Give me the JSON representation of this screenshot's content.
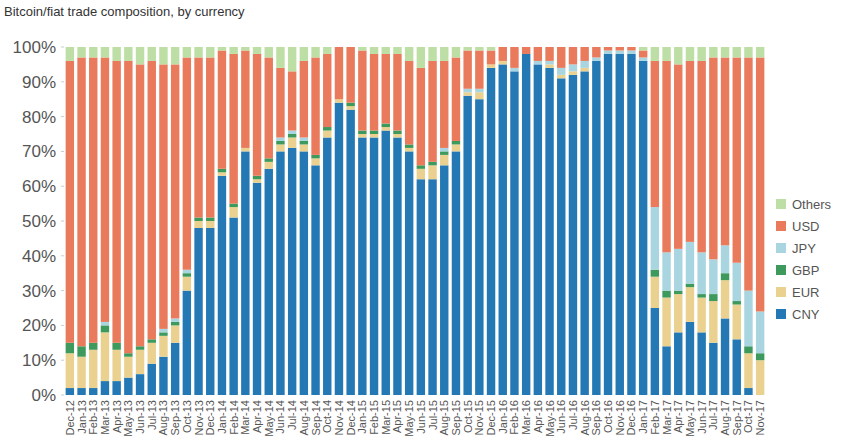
{
  "chart_data": {
    "type": "bar",
    "title": "Bitcoin/fiat trade composition, by currency",
    "stacked": true,
    "grid": false,
    "legend": "right",
    "categories": [
      "Dec-12",
      "Jan-13",
      "Feb-13",
      "Mar-13",
      "Apr-13",
      "May-13",
      "Jun-13",
      "Jul-13",
      "Aug-13",
      "Sep-13",
      "Oct-13",
      "Nov-13",
      "Dec-13",
      "Jan-14",
      "Feb-14",
      "Mar-14",
      "Apr-14",
      "May-14",
      "Jun-14",
      "Jul-14",
      "Aug-14",
      "Sep-14",
      "Oct-14",
      "Nov-14",
      "Dec-14",
      "Jan-15",
      "Feb-15",
      "Mar-15",
      "Apr-15",
      "May-15",
      "Jun-15",
      "Jul-15",
      "Aug-15",
      "Sep-15",
      "Oct-15",
      "Nov-15",
      "Dec-15",
      "Jan-16",
      "Feb-16",
      "Mar-16",
      "Apr-16",
      "May-16",
      "Jun-16",
      "Jul-16",
      "Aug-16",
      "Sep-16",
      "Oct-16",
      "Nov-16",
      "Dec-16",
      "Jan-17",
      "Feb-17",
      "Mar-17",
      "Apr-17",
      "May-17",
      "Jun-17",
      "Jul-17",
      "Aug-17",
      "Sep-17",
      "Oct-17",
      "Nov-17"
    ],
    "ylim": [
      0,
      100
    ],
    "yticks": [
      {
        "value": 0,
        "label": "0%"
      },
      {
        "value": 10,
        "label": "10%"
      },
      {
        "value": 20,
        "label": "20%"
      },
      {
        "value": 30,
        "label": "30%"
      },
      {
        "value": 40,
        "label": "40%"
      },
      {
        "value": 50,
        "label": "50%"
      },
      {
        "value": 60,
        "label": "60%"
      },
      {
        "value": 70,
        "label": "70%"
      },
      {
        "value": 80,
        "label": "80%"
      },
      {
        "value": 90,
        "label": "90%"
      },
      {
        "value": 100,
        "label": "100%"
      }
    ],
    "series": [
      {
        "name": "CNY",
        "color": "#2479b5",
        "values": [
          2,
          2,
          2,
          4,
          4,
          5,
          6,
          9,
          11,
          15,
          30,
          48,
          48,
          63,
          51,
          70,
          61,
          65,
          70,
          71,
          70,
          66,
          74,
          84,
          82,
          74,
          74,
          76,
          74,
          70,
          62,
          62,
          66,
          70,
          86,
          85,
          94,
          95,
          93,
          98,
          95,
          94,
          91,
          92,
          93,
          96,
          98,
          98,
          98,
          96,
          25,
          14,
          18,
          21,
          18,
          15,
          22,
          16,
          2,
          0
        ]
      },
      {
        "name": "EUR",
        "color": "#ead18f",
        "values": [
          10,
          9,
          11,
          14,
          9,
          6,
          7,
          6,
          6,
          5,
          4,
          2,
          2,
          1,
          3,
          1,
          1,
          2,
          2,
          3,
          2,
          2,
          2,
          1,
          1,
          1,
          1,
          1,
          1,
          1,
          3,
          4,
          3,
          2,
          1,
          2,
          1,
          1,
          0,
          0,
          0,
          1,
          1,
          1,
          1,
          0,
          0,
          0,
          0,
          0,
          9,
          14,
          11,
          10,
          10,
          12,
          11,
          10,
          10,
          10
        ]
      },
      {
        "name": "GBP",
        "color": "#3d9a5c",
        "values": [
          3,
          3,
          2,
          2,
          2,
          1,
          1,
          1,
          1,
          1,
          1,
          1,
          1,
          1,
          1,
          0,
          1,
          1,
          1,
          1,
          1,
          1,
          1,
          0,
          1,
          1,
          1,
          1,
          1,
          1,
          1,
          1,
          1,
          1,
          0,
          0,
          0,
          0,
          0,
          0,
          0,
          0,
          0,
          0,
          0,
          0,
          0,
          0,
          0,
          0,
          2,
          2,
          1,
          1,
          1,
          2,
          2,
          1,
          2,
          2
        ]
      },
      {
        "name": "JPY",
        "color": "#a9d5e1",
        "values": [
          0,
          0,
          0,
          1,
          0,
          0,
          0,
          0,
          1,
          1,
          1,
          0,
          0,
          0,
          0,
          0,
          0,
          0,
          1,
          1,
          1,
          0,
          0,
          0,
          0,
          0,
          0,
          0,
          0,
          0,
          0,
          0,
          1,
          0,
          1,
          1,
          0,
          0,
          1,
          0,
          1,
          1,
          2,
          2,
          2,
          1,
          1,
          1,
          1,
          1,
          18,
          11,
          12,
          12,
          12,
          10,
          8,
          11,
          16,
          12
        ]
      },
      {
        "name": "USD",
        "color": "#e97b5c",
        "values": [
          81,
          83,
          82,
          76,
          81,
          84,
          81,
          80,
          76,
          73,
          61,
          46,
          46,
          34,
          43,
          28,
          35,
          29,
          20,
          17,
          22,
          28,
          21,
          15,
          16,
          23,
          22,
          20,
          22,
          24,
          28,
          29,
          25,
          24,
          11,
          11,
          4,
          4,
          6,
          2,
          4,
          4,
          6,
          5,
          4,
          3,
          1,
          1,
          1,
          2,
          42,
          55,
          53,
          52,
          55,
          58,
          54,
          59,
          67,
          73
        ]
      },
      {
        "name": "Others",
        "color": "#bddfa5",
        "values": [
          4,
          3,
          3,
          3,
          4,
          4,
          5,
          4,
          5,
          5,
          3,
          3,
          3,
          1,
          2,
          1,
          2,
          3,
          6,
          7,
          4,
          3,
          2,
          0,
          0,
          1,
          2,
          2,
          2,
          4,
          6,
          4,
          4,
          3,
          1,
          1,
          1,
          0,
          0,
          0,
          0,
          0,
          0,
          0,
          0,
          0,
          0,
          0,
          0,
          1,
          4,
          4,
          5,
          4,
          4,
          3,
          3,
          3,
          3,
          3
        ]
      }
    ]
  }
}
